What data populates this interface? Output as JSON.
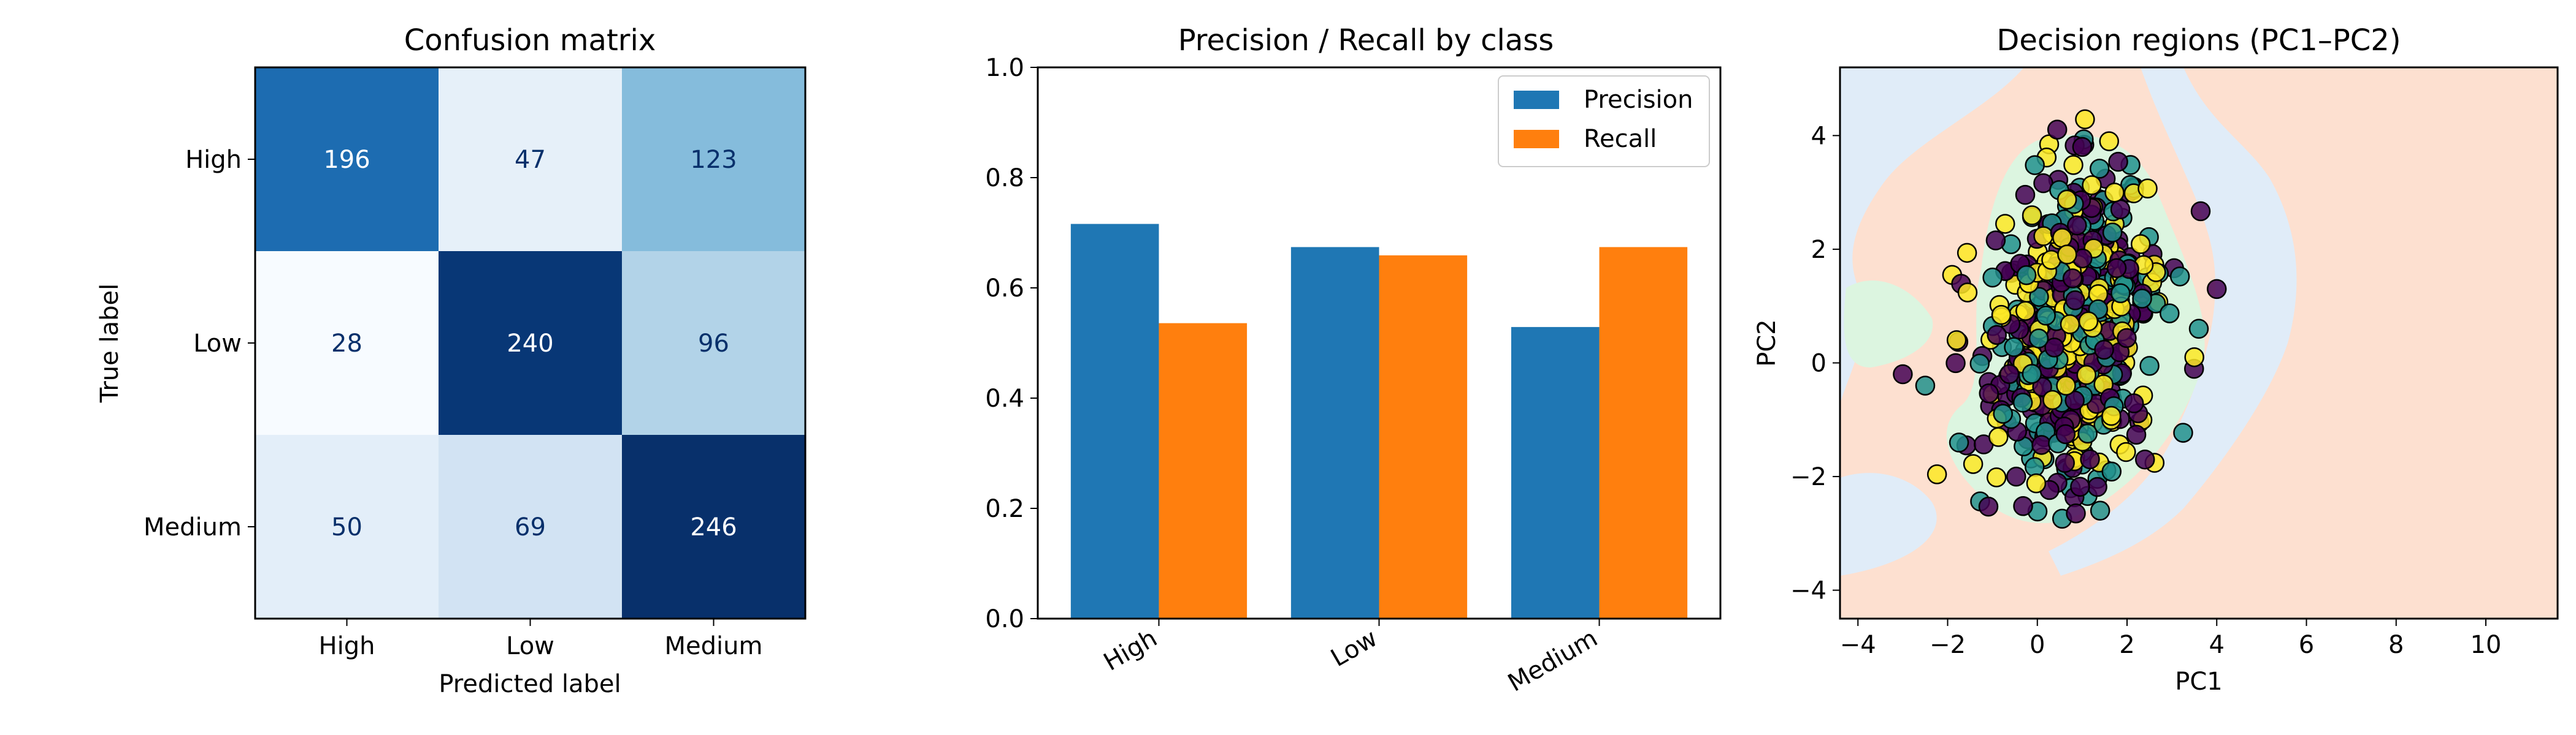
{
  "chart_data": [
    {
      "type": "heatmap",
      "title": "Confusion matrix",
      "xlabel": "Predicted label",
      "ylabel": "True label",
      "x_categories": [
        "High",
        "Low",
        "Medium"
      ],
      "y_categories": [
        "High",
        "Low",
        "Medium"
      ],
      "values": [
        [
          196,
          47,
          123
        ],
        [
          28,
          240,
          96
        ],
        [
          50,
          69,
          246
        ]
      ],
      "colormap": "Blues",
      "grid": false
    },
    {
      "type": "bar",
      "title": "Precision / Recall by class",
      "categories": [
        "High",
        "Low",
        "Medium"
      ],
      "series": [
        {
          "name": "Precision",
          "values": [
            0.716,
            0.674,
            0.529
          ],
          "color": "#1f77b4"
        },
        {
          "name": "Recall",
          "values": [
            0.536,
            0.659,
            0.674
          ],
          "color": "#ff7f0e"
        }
      ],
      "ylim": [
        0,
        1.0
      ],
      "yticks": [
        "0.0",
        "0.2",
        "0.4",
        "0.6",
        "0.8",
        "1.0"
      ],
      "legend_position": "upper right",
      "grid": false
    },
    {
      "type": "scatter",
      "title": "Decision regions (PC1–PC2)",
      "xlabel": "PC1",
      "ylabel": "PC2",
      "xlim": [
        -4.4,
        11.6
      ],
      "ylim": [
        -4.5,
        5.2
      ],
      "xticks": [
        "−4",
        "−2",
        "0",
        "2",
        "4",
        "6",
        "8",
        "10"
      ],
      "yticks": [
        "−4",
        "−2",
        "0",
        "2",
        "4"
      ],
      "region_colors": [
        "#fde0d0",
        "#e0ecf8",
        "#dcf5e0"
      ],
      "point_colors": [
        "#440154",
        "#21918c",
        "#fde725"
      ],
      "grid": false
    }
  ]
}
